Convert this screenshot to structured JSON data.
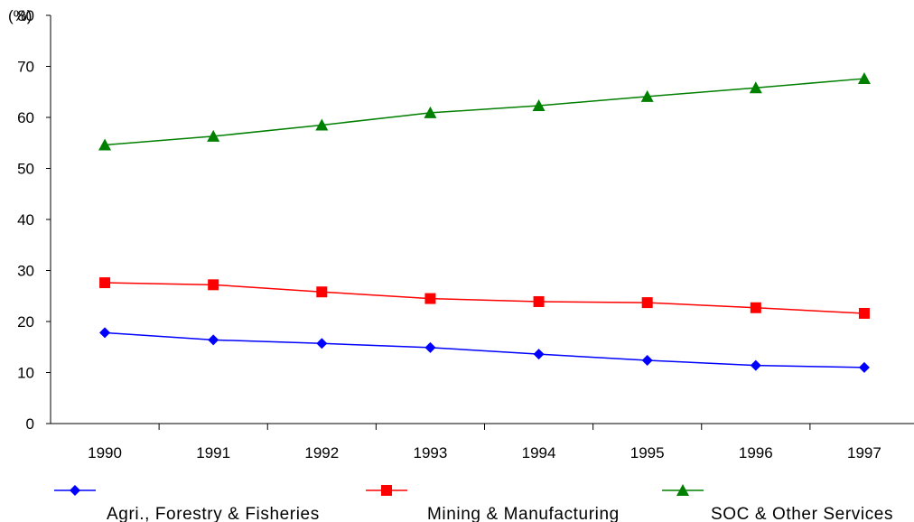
{
  "chart_data": {
    "type": "line",
    "title": "",
    "xlabel": "",
    "ylabel": "(%)",
    "y_axis_top_label": "80",
    "categories": [
      "1990",
      "1991",
      "1992",
      "1993",
      "1994",
      "1995",
      "1996",
      "1997"
    ],
    "ylim": [
      0,
      80
    ],
    "yticks": [
      0,
      10,
      20,
      30,
      40,
      50,
      60,
      70
    ],
    "grid": false,
    "legend_position": "bottom",
    "series": [
      {
        "name": "Agri., Forestry & Fisheries",
        "color": "#0000ff",
        "marker": "diamond",
        "values": [
          17.8,
          16.4,
          15.7,
          14.9,
          13.6,
          12.4,
          11.4,
          11.0
        ]
      },
      {
        "name": "Mining & Manufacturing",
        "color": "#ff0000",
        "marker": "square",
        "values": [
          27.6,
          27.2,
          25.8,
          24.5,
          23.9,
          23.7,
          22.7,
          21.6
        ]
      },
      {
        "name": "SOC & Other Services",
        "color": "#008000",
        "marker": "triangle",
        "values": [
          54.6,
          56.3,
          58.5,
          60.9,
          62.3,
          64.1,
          65.8,
          67.6
        ]
      }
    ]
  }
}
